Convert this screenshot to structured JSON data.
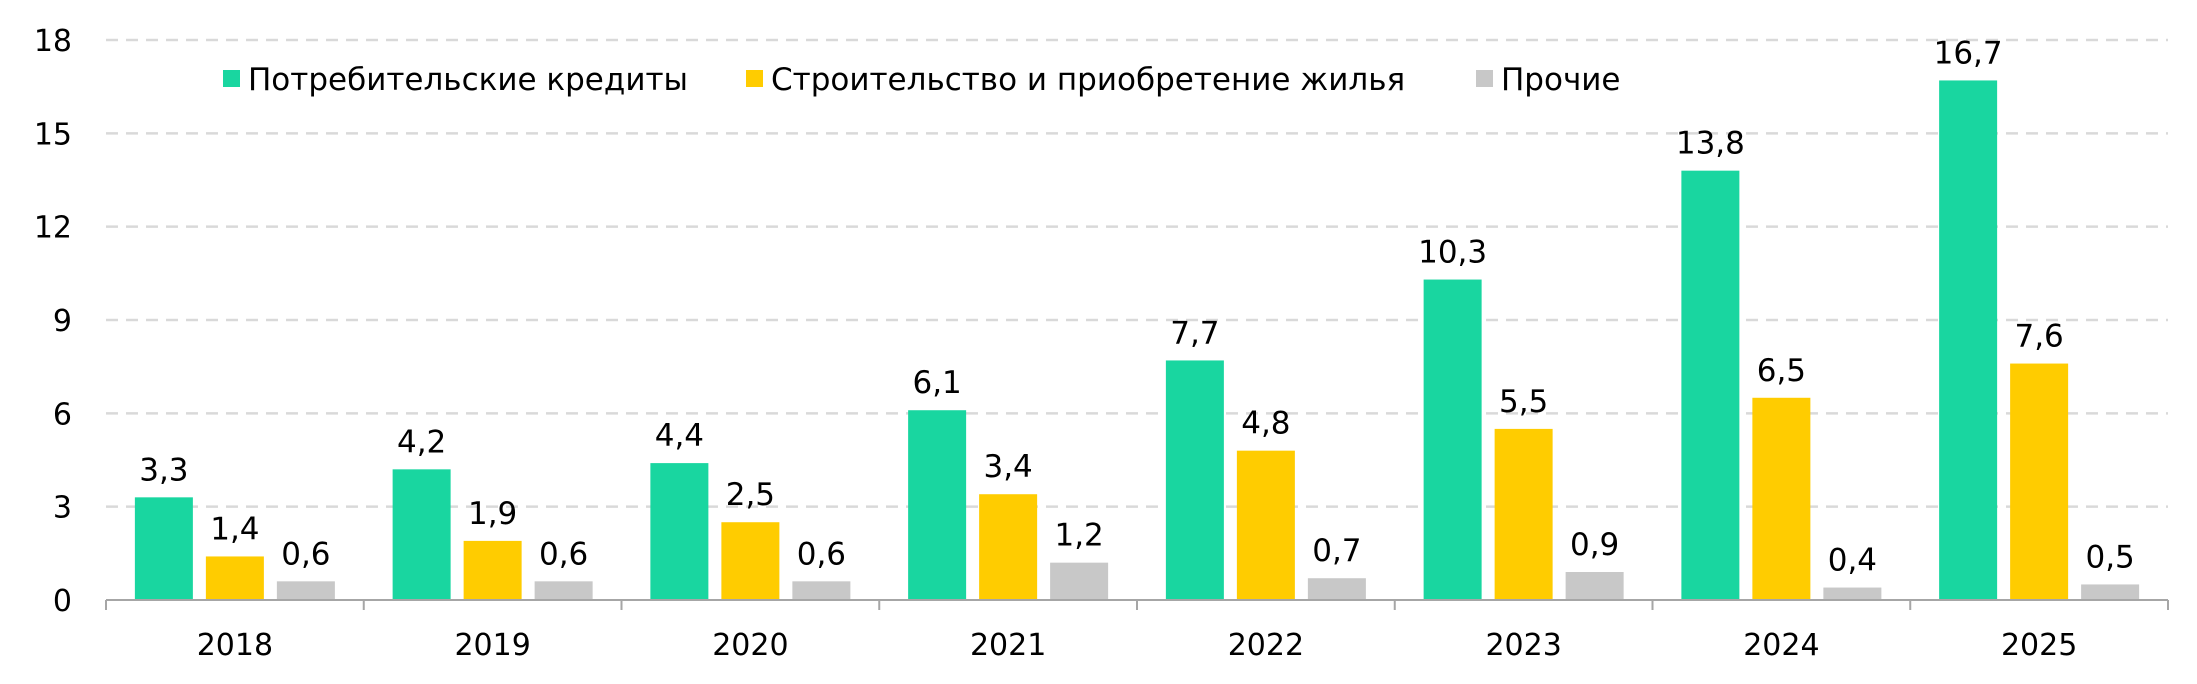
{
  "chart_data": {
    "type": "bar",
    "categories": [
      "2018",
      "2019",
      "2020",
      "2021",
      "2022",
      "2023",
      "2024",
      "2025"
    ],
    "series": [
      {
        "name": "Потребительские кредиты",
        "color": "#19d6a0",
        "values": [
          3.3,
          4.2,
          4.4,
          6.1,
          7.7,
          10.3,
          13.8,
          16.7
        ],
        "labels": [
          "3,3",
          "4,2",
          "4,4",
          "6,1",
          "7,7",
          "10,3",
          "13,8",
          "16,7"
        ]
      },
      {
        "name": "Строительство и приобретение жилья",
        "color": "#ffcc00",
        "values": [
          1.4,
          1.9,
          2.5,
          3.4,
          4.8,
          5.5,
          6.5,
          7.6
        ],
        "labels": [
          "1,4",
          "1,9",
          "2,5",
          "3,4",
          "4,8",
          "5,5",
          "6,5",
          "7,6"
        ]
      },
      {
        "name": "Прочие",
        "color": "#c8c8c8",
        "values": [
          0.6,
          0.6,
          0.6,
          1.2,
          0.7,
          0.9,
          0.4,
          0.5
        ],
        "labels": [
          "0,6",
          "0,6",
          "0,6",
          "1,2",
          "0,7",
          "0,9",
          "0,4",
          "0,5"
        ]
      }
    ],
    "y_ticks": [
      "0",
      "3",
      "6",
      "9",
      "12",
      "15",
      "18"
    ],
    "ylim": [
      0,
      18
    ],
    "grid": true,
    "grid_style": "dashed",
    "legend_position": "top-left",
    "title": "",
    "xlabel": "",
    "ylabel": ""
  }
}
